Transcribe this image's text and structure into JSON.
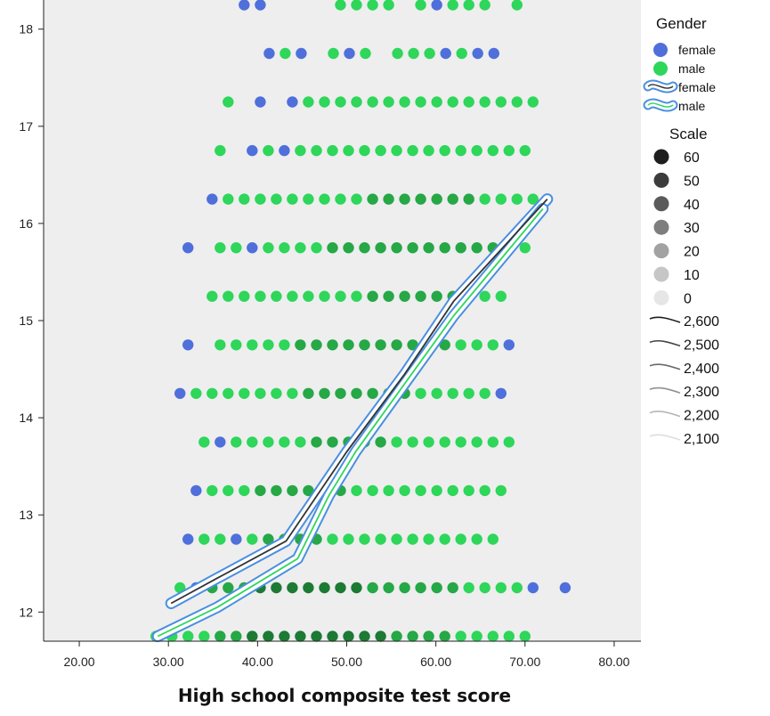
{
  "chart_data": {
    "type": "scatter",
    "title": "",
    "xlabel": "High school composite test score",
    "ylabel": "",
    "xlim": [
      16,
      83
    ],
    "ylim": [
      11.7,
      18.3
    ],
    "x_ticks": [
      "20.00",
      "30.00",
      "40.00",
      "50.00",
      "60.00",
      "70.00",
      "80.00"
    ],
    "x_tick_values": [
      20,
      30,
      40,
      50,
      60,
      70,
      80
    ],
    "y_ticks": [
      "12",
      "13",
      "14",
      "15",
      "16",
      "17",
      "18"
    ],
    "y_tick_values": [
      12,
      13,
      14,
      15,
      16,
      17,
      18
    ],
    "grid": false,
    "background": "#eeeeee",
    "colors": {
      "female": "#4f6fdb",
      "male": "#2ed65a",
      "male_dense": "#25a845",
      "male_dark": "#1c7a34",
      "band": "#4a8fe0"
    },
    "rows": [
      {
        "y": 18.25,
        "start": 38.5,
        "step": 1.8,
        "groups": [
          {
            "g": "female",
            "n": 2
          },
          {
            "gap": 4
          },
          {
            "g": "male",
            "n": 4
          },
          {
            "gap": 1
          },
          {
            "g": "male",
            "n": 1
          },
          {
            "g": "female",
            "n": 1
          },
          {
            "g": "male",
            "n": 3
          },
          {
            "gap": 1
          },
          {
            "g": "male",
            "n": 1
          }
        ]
      },
      {
        "y": 17.75,
        "start": 41.3,
        "step": 1.8,
        "groups": [
          {
            "g": "female",
            "n": 1
          },
          {
            "g": "male",
            "n": 1
          },
          {
            "g": "female",
            "n": 1
          },
          {
            "gap": 1
          },
          {
            "g": "male",
            "n": 1
          },
          {
            "g": "female",
            "n": 1
          },
          {
            "g": "male",
            "n": 1
          },
          {
            "gap": 1
          },
          {
            "g": "male",
            "n": 3
          },
          {
            "g": "female",
            "n": 1
          },
          {
            "g": "male",
            "n": 1
          },
          {
            "g": "female",
            "n": 2
          }
        ]
      },
      {
        "y": 17.25,
        "start": 36.7,
        "step": 1.8,
        "groups": [
          {
            "g": "male",
            "n": 1
          },
          {
            "gap": 1
          },
          {
            "g": "female",
            "n": 1
          },
          {
            "gap": 1
          },
          {
            "g": "female",
            "n": 1
          },
          {
            "g": "male",
            "n": 15
          }
        ]
      },
      {
        "y": 16.75,
        "start": 35.8,
        "step": 1.8,
        "groups": [
          {
            "g": "male",
            "n": 1
          },
          {
            "gap": 1
          },
          {
            "g": "female",
            "n": 1
          },
          {
            "g": "male",
            "n": 1
          },
          {
            "g": "female",
            "n": 1
          },
          {
            "g": "male",
            "n": 15
          }
        ]
      },
      {
        "y": 16.25,
        "start": 34.9,
        "step": 1.8,
        "groups": [
          {
            "g": "female",
            "n": 1
          },
          {
            "g": "male",
            "n": 20
          }
        ]
      },
      {
        "y": 15.75,
        "start": 32.2,
        "step": 1.8,
        "groups": [
          {
            "g": "female",
            "n": 1
          },
          {
            "gap": 1
          },
          {
            "g": "male",
            "n": 2
          },
          {
            "g": "female",
            "n": 1
          },
          {
            "g": "male",
            "n": 17
          }
        ]
      },
      {
        "y": 15.25,
        "start": 34.9,
        "step": 1.8,
        "groups": [
          {
            "g": "male",
            "n": 19
          }
        ]
      },
      {
        "y": 14.75,
        "start": 32.2,
        "step": 1.8,
        "groups": [
          {
            "g": "female",
            "n": 1
          },
          {
            "gap": 1
          },
          {
            "g": "male",
            "n": 18
          },
          {
            "g": "female",
            "n": 1
          }
        ]
      },
      {
        "y": 14.25,
        "start": 31.3,
        "step": 1.8,
        "groups": [
          {
            "g": "female",
            "n": 1
          },
          {
            "g": "male",
            "n": 19
          },
          {
            "g": "female",
            "n": 1
          }
        ]
      },
      {
        "y": 13.75,
        "start": 34.0,
        "step": 1.8,
        "groups": [
          {
            "g": "male",
            "n": 1
          },
          {
            "g": "female",
            "n": 1
          },
          {
            "g": "male",
            "n": 18
          }
        ]
      },
      {
        "y": 13.25,
        "start": 33.1,
        "step": 1.8,
        "groups": [
          {
            "g": "female",
            "n": 1
          },
          {
            "g": "male",
            "n": 19
          }
        ]
      },
      {
        "y": 12.75,
        "start": 32.2,
        "step": 1.8,
        "groups": [
          {
            "g": "female",
            "n": 1
          },
          {
            "g": "male",
            "n": 2
          },
          {
            "g": "female",
            "n": 1
          },
          {
            "g": "male",
            "n": 16
          }
        ]
      },
      {
        "y": 12.25,
        "start": 31.3,
        "step": 1.8,
        "groups": [
          {
            "g": "male",
            "n": 1
          },
          {
            "g": "female",
            "n": 1
          },
          {
            "g": "male",
            "n": 20
          },
          {
            "g": "female",
            "n": 1
          },
          {
            "gap": 1
          },
          {
            "g": "female",
            "n": 1
          }
        ]
      },
      {
        "y": 11.75,
        "start": 28.6,
        "step": 1.8,
        "groups": [
          {
            "g": "male",
            "n": 24
          }
        ]
      }
    ],
    "dense_ranges": [
      {
        "y": 16.25,
        "from": 52,
        "to": 65
      },
      {
        "y": 15.75,
        "from": 48,
        "to": 67
      },
      {
        "y": 15.25,
        "from": 52,
        "to": 62
      },
      {
        "y": 14.75,
        "from": 44,
        "to": 62
      },
      {
        "y": 14.25,
        "from": 44,
        "to": 58
      },
      {
        "y": 13.75,
        "from": 46,
        "to": 54
      },
      {
        "y": 13.25,
        "from": 40,
        "to": 50
      },
      {
        "y": 12.75,
        "from": 40,
        "to": 47
      },
      {
        "y": 12.25,
        "from": 33,
        "to": 62
      },
      {
        "y": 11.75,
        "from": 35,
        "to": 62
      }
    ],
    "dark_ranges": [
      {
        "y": 12.25,
        "from": 40,
        "to": 52
      },
      {
        "y": 11.75,
        "from": 38,
        "to": 55
      }
    ],
    "fit_lines": [
      {
        "name": "female",
        "x": [
          30.3,
          35.5,
          43.2,
          50.0,
          56.5,
          62.0,
          67.0,
          72.5
        ],
        "y": [
          12.09,
          12.35,
          12.73,
          13.65,
          14.45,
          15.2,
          15.7,
          16.25
        ]
      },
      {
        "name": "male",
        "x": [
          28.8,
          35.5,
          44.5,
          48.0,
          51.0,
          56.5,
          62.0,
          67.0,
          72.0
        ],
        "y": [
          11.75,
          12.05,
          12.55,
          13.2,
          13.65,
          14.35,
          15.05,
          15.6,
          16.15
        ]
      }
    ],
    "legend": {
      "position": "right",
      "gender_title": "Gender",
      "gender_items": [
        {
          "label": "female",
          "kind": "dot",
          "color": "#4f6fdb"
        },
        {
          "label": "male",
          "kind": "dot",
          "color": "#2ed65a"
        },
        {
          "label": "female",
          "kind": "band",
          "color": "#4a8fe0"
        },
        {
          "label": "male",
          "kind": "band",
          "color": "#4a8fe0"
        }
      ],
      "scale_title": "Scale",
      "scale_dots": [
        {
          "label": "60",
          "shade": "#1e1e1e"
        },
        {
          "label": "50",
          "shade": "#3c3c3c"
        },
        {
          "label": "40",
          "shade": "#5a5a5a"
        },
        {
          "label": "30",
          "shade": "#7e7e7e"
        },
        {
          "label": "20",
          "shade": "#a2a2a2"
        },
        {
          "label": "10",
          "shade": "#c6c6c6"
        },
        {
          "label": "0",
          "shade": "#e6e6e6"
        }
      ],
      "scale_lines": [
        {
          "label": "2,600",
          "shade": "#1e1e1e"
        },
        {
          "label": "2,500",
          "shade": "#444444"
        },
        {
          "label": "2,400",
          "shade": "#6a6a6a"
        },
        {
          "label": "2,300",
          "shade": "#909090"
        },
        {
          "label": "2,200",
          "shade": "#b6b6b6"
        },
        {
          "label": "2,100",
          "shade": "#dcdcdc"
        }
      ]
    }
  }
}
